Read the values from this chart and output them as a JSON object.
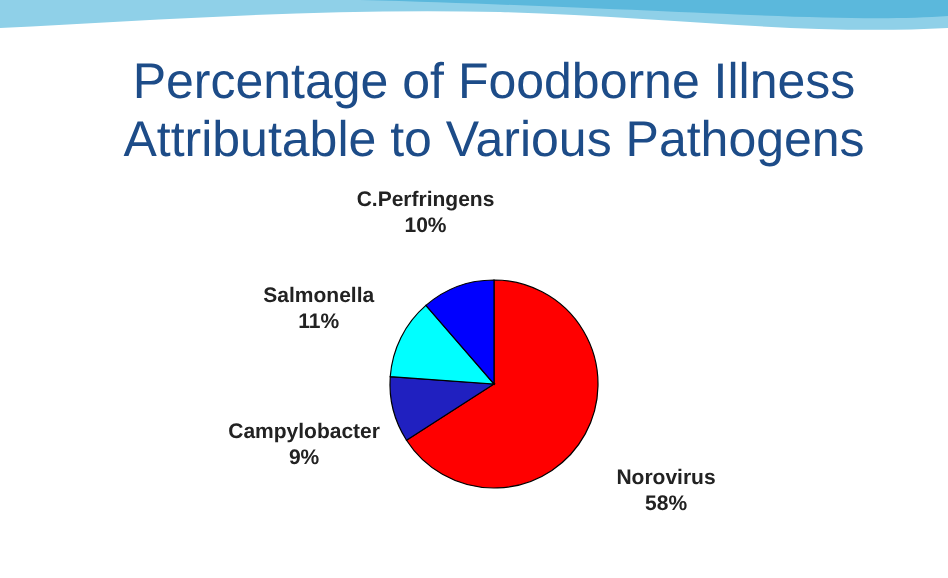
{
  "chart_data": {
    "type": "pie",
    "title": "Percentage of Foodborne Illness Attributable to Various Pathogens",
    "categories": [
      "Norovirus",
      "Campylobacter",
      "Salmonella",
      "C.Perfringens"
    ],
    "values": [
      58,
      9,
      11,
      10
    ],
    "value_labels": [
      "58%",
      "9%",
      "11%",
      "10%"
    ],
    "colors": [
      "#ff0000",
      "#2020c0",
      "#00ffff",
      "#0000ff"
    ],
    "legend": false
  }
}
